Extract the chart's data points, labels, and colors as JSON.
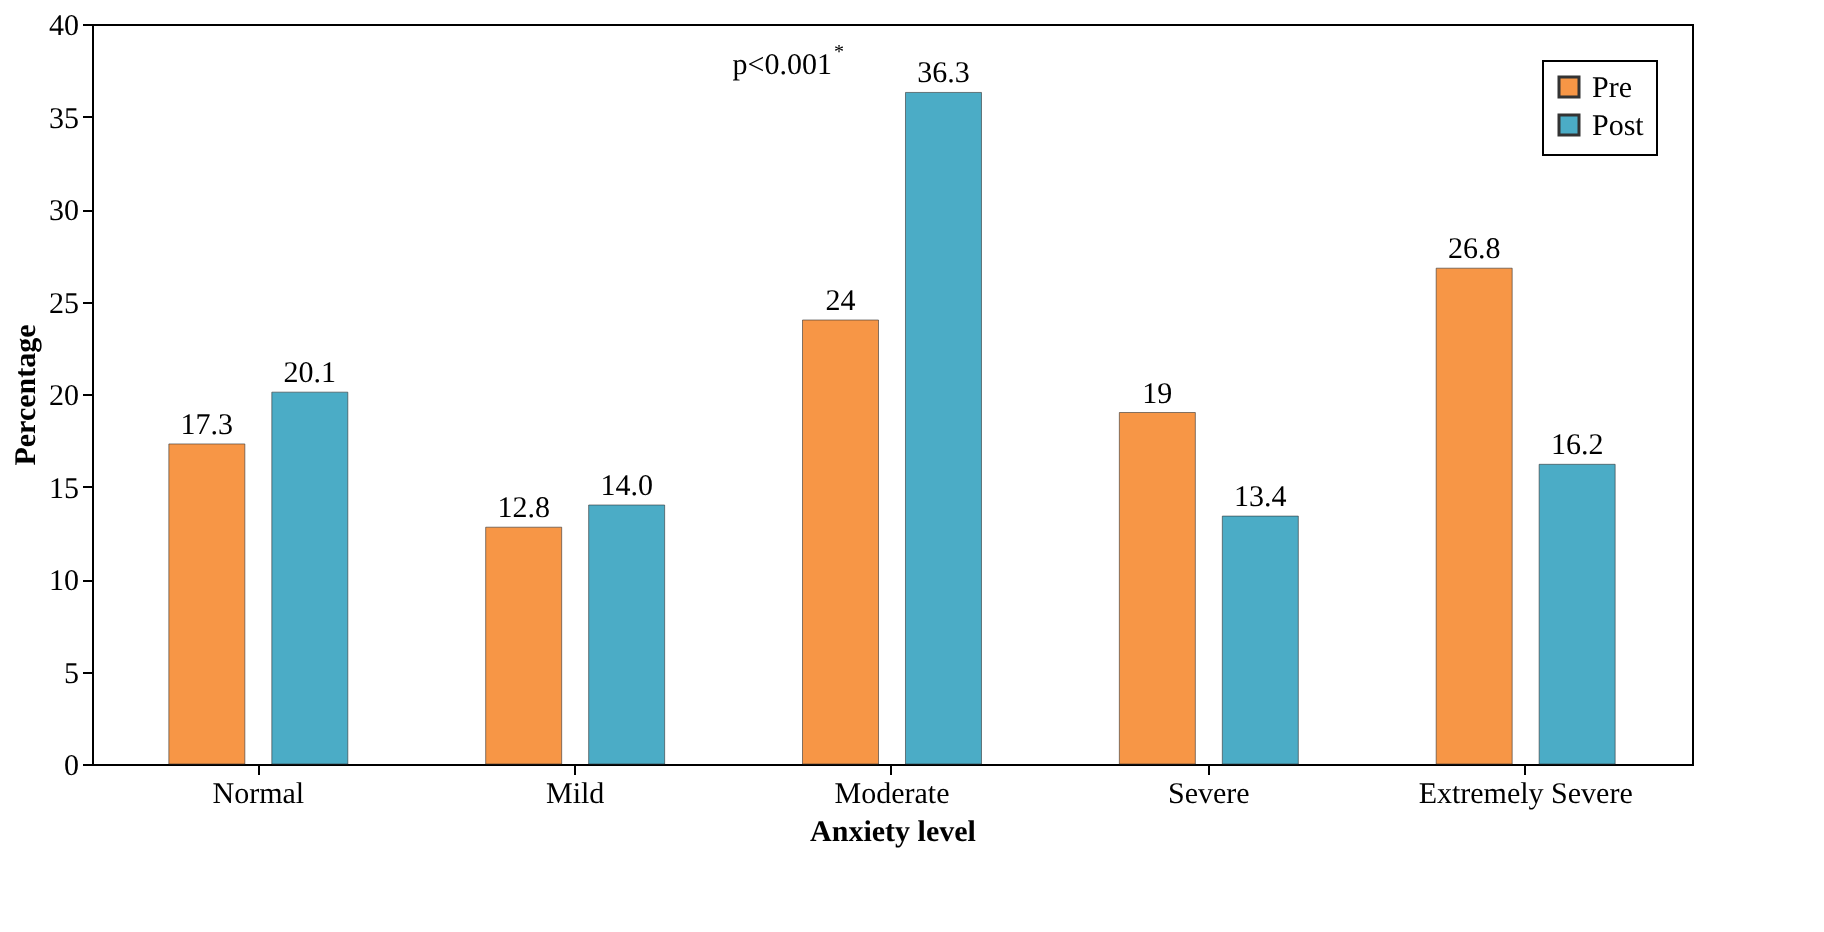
{
  "chart_data": {
    "type": "bar",
    "xlabel": "Anxiety level",
    "ylabel": "Percentage",
    "categories": [
      "Normal",
      "Mild",
      "Moderate",
      "Severe",
      "Extremely Severe"
    ],
    "series": [
      {
        "name": "Pre",
        "color": "#f79646",
        "values": [
          17.3,
          12.8,
          24,
          19,
          26.8
        ],
        "value_labels": [
          "17.3",
          "12.8",
          "24",
          "19",
          "26.8"
        ]
      },
      {
        "name": "Post",
        "color": "#4bacc6",
        "values": [
          20.1,
          14.0,
          36.3,
          13.4,
          16.2
        ],
        "value_labels": [
          "20.1",
          "14.0",
          "36.3",
          "13.4",
          "16.2"
        ]
      }
    ],
    "ylim": [
      0,
      40
    ],
    "yticks": [
      0,
      5,
      10,
      15,
      20,
      25,
      30,
      35,
      40
    ],
    "annotations": [
      "p<0.001$^{*}$"
    ],
    "legend": "top right",
    "grid": false
  }
}
